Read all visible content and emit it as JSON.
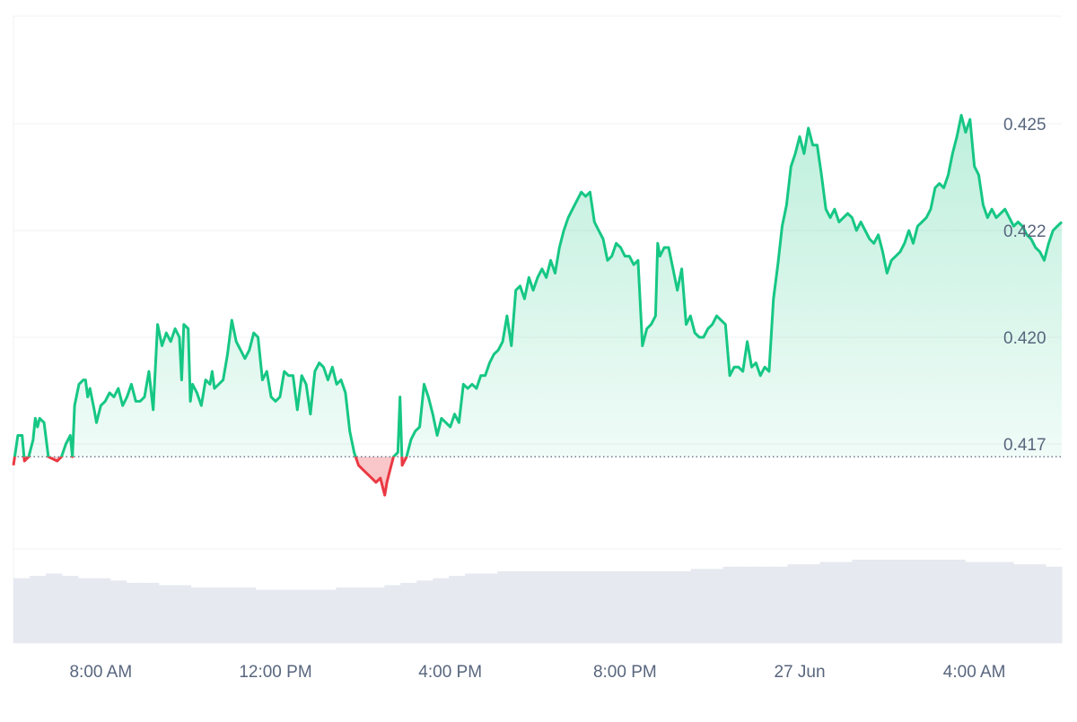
{
  "chart_data": {
    "type": "area",
    "title": "",
    "xlabel": "",
    "ylabel": "",
    "baseline": 0.4172,
    "ylim": [
      0.4145,
      0.4275
    ],
    "yticks": [
      {
        "label": "0.425",
        "value": 0.425
      },
      {
        "label": "0.422",
        "value": 0.4225
      },
      {
        "label": "0.420",
        "value": 0.42
      },
      {
        "label": "0.417",
        "value": 0.4175
      }
    ],
    "xticks": [
      {
        "label": "8:00 AM",
        "hour": 2
      },
      {
        "label": "12:00 PM",
        "hour": 6
      },
      {
        "label": "4:00 PM",
        "hour": 10
      },
      {
        "label": "8:00 PM",
        "hour": 14
      },
      {
        "label": "27 Jun",
        "hour": 18
      },
      {
        "label": "4:00 AM",
        "hour": 22
      }
    ],
    "x_range_hours": [
      0,
      24
    ],
    "colors": {
      "up": "#16c784",
      "down": "#ea3943",
      "grid": "#eff2f5",
      "axis_text": "#58667e",
      "volume": "#e6e9ef"
    },
    "series": [
      {
        "values": [
          [
            0.0,
            0.417
          ],
          [
            0.1,
            0.4177
          ],
          [
            0.2,
            0.4177
          ],
          [
            0.25,
            0.4171
          ],
          [
            0.35,
            0.4172
          ],
          [
            0.45,
            0.4176
          ],
          [
            0.5,
            0.4181
          ],
          [
            0.55,
            0.4179
          ],
          [
            0.6,
            0.4181
          ],
          [
            0.7,
            0.418
          ],
          [
            0.8,
            0.4172
          ],
          [
            1.0,
            0.4171
          ],
          [
            1.1,
            0.4172
          ],
          [
            1.2,
            0.4175
          ],
          [
            1.3,
            0.4177
          ],
          [
            1.35,
            0.4172
          ],
          [
            1.4,
            0.4184
          ],
          [
            1.5,
            0.4189
          ],
          [
            1.6,
            0.419
          ],
          [
            1.65,
            0.419
          ],
          [
            1.7,
            0.4186
          ],
          [
            1.75,
            0.4188
          ],
          [
            1.85,
            0.4183
          ],
          [
            1.9,
            0.418
          ],
          [
            2.0,
            0.4184
          ],
          [
            2.1,
            0.4185
          ],
          [
            2.2,
            0.4187
          ],
          [
            2.3,
            0.4186
          ],
          [
            2.4,
            0.4188
          ],
          [
            2.5,
            0.4184
          ],
          [
            2.6,
            0.4186
          ],
          [
            2.7,
            0.4189
          ],
          [
            2.8,
            0.4185
          ],
          [
            2.9,
            0.4185
          ],
          [
            3.0,
            0.4186
          ],
          [
            3.1,
            0.4192
          ],
          [
            3.2,
            0.4183
          ],
          [
            3.3,
            0.4203
          ],
          [
            3.4,
            0.4198
          ],
          [
            3.5,
            0.4201
          ],
          [
            3.6,
            0.4199
          ],
          [
            3.7,
            0.4202
          ],
          [
            3.8,
            0.42
          ],
          [
            3.85,
            0.419
          ],
          [
            3.9,
            0.4203
          ],
          [
            4.0,
            0.4202
          ],
          [
            4.05,
            0.4185
          ],
          [
            4.1,
            0.4189
          ],
          [
            4.2,
            0.4187
          ],
          [
            4.3,
            0.4184
          ],
          [
            4.4,
            0.419
          ],
          [
            4.5,
            0.4189
          ],
          [
            4.55,
            0.4192
          ],
          [
            4.6,
            0.4188
          ],
          [
            4.7,
            0.4189
          ],
          [
            4.8,
            0.419
          ],
          [
            4.9,
            0.4196
          ],
          [
            5.0,
            0.4204
          ],
          [
            5.1,
            0.4199
          ],
          [
            5.2,
            0.4197
          ],
          [
            5.3,
            0.4195
          ],
          [
            5.4,
            0.4197
          ],
          [
            5.5,
            0.4201
          ],
          [
            5.6,
            0.42
          ],
          [
            5.7,
            0.419
          ],
          [
            5.8,
            0.4192
          ],
          [
            5.9,
            0.4186
          ],
          [
            6.0,
            0.4185
          ],
          [
            6.1,
            0.4186
          ],
          [
            6.2,
            0.4192
          ],
          [
            6.3,
            0.4191
          ],
          [
            6.4,
            0.4191
          ],
          [
            6.5,
            0.4183
          ],
          [
            6.6,
            0.4191
          ],
          [
            6.7,
            0.4189
          ],
          [
            6.8,
            0.4182
          ],
          [
            6.9,
            0.4192
          ],
          [
            7.0,
            0.4194
          ],
          [
            7.1,
            0.4193
          ],
          [
            7.2,
            0.419
          ],
          [
            7.3,
            0.4193
          ],
          [
            7.4,
            0.4189
          ],
          [
            7.5,
            0.419
          ],
          [
            7.6,
            0.4187
          ],
          [
            7.7,
            0.4178
          ],
          [
            7.8,
            0.4173
          ],
          [
            7.9,
            0.417
          ],
          [
            8.0,
            0.4169
          ],
          [
            8.1,
            0.4168
          ],
          [
            8.2,
            0.4167
          ],
          [
            8.3,
            0.4166
          ],
          [
            8.4,
            0.4167
          ],
          [
            8.5,
            0.4163
          ],
          [
            8.55,
            0.4166
          ],
          [
            8.6,
            0.4168
          ],
          [
            8.7,
            0.4172
          ],
          [
            8.8,
            0.4173
          ],
          [
            8.85,
            0.4186
          ],
          [
            8.9,
            0.417
          ],
          [
            9.0,
            0.4172
          ],
          [
            9.1,
            0.4176
          ],
          [
            9.2,
            0.4178
          ],
          [
            9.3,
            0.4179
          ],
          [
            9.4,
            0.4189
          ],
          [
            9.5,
            0.4186
          ],
          [
            9.6,
            0.4182
          ],
          [
            9.7,
            0.4177
          ],
          [
            9.8,
            0.4181
          ],
          [
            9.9,
            0.418
          ],
          [
            10.0,
            0.4179
          ],
          [
            10.1,
            0.4182
          ],
          [
            10.2,
            0.418
          ],
          [
            10.3,
            0.4189
          ],
          [
            10.4,
            0.4188
          ],
          [
            10.5,
            0.4189
          ],
          [
            10.6,
            0.4188
          ],
          [
            10.7,
            0.4191
          ],
          [
            10.8,
            0.4191
          ],
          [
            10.9,
            0.4194
          ],
          [
            11.0,
            0.4196
          ],
          [
            11.1,
            0.4197
          ],
          [
            11.2,
            0.4199
          ],
          [
            11.3,
            0.4205
          ],
          [
            11.4,
            0.4198
          ],
          [
            11.5,
            0.4211
          ],
          [
            11.6,
            0.4212
          ],
          [
            11.7,
            0.4209
          ],
          [
            11.8,
            0.4214
          ],
          [
            11.9,
            0.4211
          ],
          [
            12.0,
            0.4214
          ],
          [
            12.1,
            0.4216
          ],
          [
            12.2,
            0.4214
          ],
          [
            12.3,
            0.4218
          ],
          [
            12.4,
            0.4215
          ],
          [
            12.5,
            0.4221
          ],
          [
            12.6,
            0.4225
          ],
          [
            12.7,
            0.4228
          ],
          [
            12.8,
            0.423
          ],
          [
            12.9,
            0.4232
          ],
          [
            13.0,
            0.4234
          ],
          [
            13.1,
            0.4233
          ],
          [
            13.2,
            0.4234
          ],
          [
            13.3,
            0.4227
          ],
          [
            13.4,
            0.4225
          ],
          [
            13.5,
            0.4223
          ],
          [
            13.6,
            0.4218
          ],
          [
            13.7,
            0.4219
          ],
          [
            13.8,
            0.4222
          ],
          [
            13.9,
            0.4221
          ],
          [
            14.0,
            0.4219
          ],
          [
            14.1,
            0.4219
          ],
          [
            14.2,
            0.4217
          ],
          [
            14.3,
            0.4218
          ],
          [
            14.4,
            0.4198
          ],
          [
            14.5,
            0.4202
          ],
          [
            14.6,
            0.4203
          ],
          [
            14.7,
            0.4205
          ],
          [
            14.75,
            0.4222
          ],
          [
            14.8,
            0.4219
          ],
          [
            14.9,
            0.4221
          ],
          [
            15.0,
            0.4221
          ],
          [
            15.1,
            0.4216
          ],
          [
            15.2,
            0.4211
          ],
          [
            15.3,
            0.4216
          ],
          [
            15.4,
            0.4203
          ],
          [
            15.5,
            0.4205
          ],
          [
            15.6,
            0.4201
          ],
          [
            15.7,
            0.42
          ],
          [
            15.8,
            0.42
          ],
          [
            15.9,
            0.4202
          ],
          [
            16.0,
            0.4203
          ],
          [
            16.1,
            0.4205
          ],
          [
            16.2,
            0.4204
          ],
          [
            16.3,
            0.4203
          ],
          [
            16.4,
            0.4191
          ],
          [
            16.5,
            0.4193
          ],
          [
            16.6,
            0.4193
          ],
          [
            16.7,
            0.4192
          ],
          [
            16.8,
            0.4199
          ],
          [
            16.9,
            0.4193
          ],
          [
            17.0,
            0.4194
          ],
          [
            17.1,
            0.4191
          ],
          [
            17.2,
            0.4193
          ],
          [
            17.3,
            0.4192
          ],
          [
            17.4,
            0.4209
          ],
          [
            17.5,
            0.4217
          ],
          [
            17.6,
            0.4226
          ],
          [
            17.7,
            0.4231
          ],
          [
            17.8,
            0.424
          ],
          [
            17.9,
            0.4243
          ],
          [
            18.0,
            0.4247
          ],
          [
            18.1,
            0.4243
          ],
          [
            18.2,
            0.4249
          ],
          [
            18.3,
            0.4245
          ],
          [
            18.4,
            0.4245
          ],
          [
            18.5,
            0.4238
          ],
          [
            18.6,
            0.423
          ],
          [
            18.7,
            0.4228
          ],
          [
            18.8,
            0.423
          ],
          [
            18.9,
            0.4227
          ],
          [
            19.0,
            0.4228
          ],
          [
            19.1,
            0.4229
          ],
          [
            19.2,
            0.4228
          ],
          [
            19.3,
            0.4225
          ],
          [
            19.4,
            0.4227
          ],
          [
            19.5,
            0.4225
          ],
          [
            19.6,
            0.4223
          ],
          [
            19.7,
            0.4222
          ],
          [
            19.8,
            0.4224
          ],
          [
            19.9,
            0.422
          ],
          [
            20.0,
            0.4215
          ],
          [
            20.1,
            0.4218
          ],
          [
            20.2,
            0.4219
          ],
          [
            20.3,
            0.422
          ],
          [
            20.4,
            0.4222
          ],
          [
            20.5,
            0.4225
          ],
          [
            20.6,
            0.4222
          ],
          [
            20.7,
            0.4226
          ],
          [
            20.8,
            0.4227
          ],
          [
            20.9,
            0.4228
          ],
          [
            21.0,
            0.423
          ],
          [
            21.1,
            0.4235
          ],
          [
            21.2,
            0.4236
          ],
          [
            21.3,
            0.4235
          ],
          [
            21.4,
            0.4238
          ],
          [
            21.5,
            0.4243
          ],
          [
            21.6,
            0.4247
          ],
          [
            21.7,
            0.4252
          ],
          [
            21.8,
            0.4248
          ],
          [
            21.9,
            0.4251
          ],
          [
            22.0,
            0.424
          ],
          [
            22.1,
            0.4238
          ],
          [
            22.2,
            0.4231
          ],
          [
            22.3,
            0.4228
          ],
          [
            22.4,
            0.423
          ],
          [
            22.5,
            0.4228
          ],
          [
            22.6,
            0.4229
          ],
          [
            22.7,
            0.423
          ],
          [
            22.8,
            0.4228
          ],
          [
            22.9,
            0.4226
          ],
          [
            23.0,
            0.4227
          ],
          [
            23.1,
            0.4226
          ],
          [
            23.2,
            0.4224
          ],
          [
            23.3,
            0.4223
          ],
          [
            23.4,
            0.4221
          ],
          [
            23.5,
            0.422
          ],
          [
            23.6,
            0.4218
          ],
          [
            23.7,
            0.4222
          ],
          [
            23.8,
            0.4225
          ],
          [
            23.9,
            0.4226
          ],
          [
            24.0,
            0.4227
          ]
        ]
      }
    ],
    "volume": [
      28,
      29,
      30,
      29,
      28,
      28,
      27,
      26,
      26,
      25,
      25,
      24,
      24,
      24,
      24,
      23,
      23,
      23,
      23,
      23,
      24,
      24,
      24,
      25,
      26,
      27,
      28,
      29,
      30,
      30,
      31,
      31,
      31,
      31,
      31,
      31,
      31,
      31,
      31,
      31,
      31,
      31,
      32,
      32,
      33,
      33,
      33,
      33,
      34,
      34,
      35,
      35,
      36,
      36,
      36,
      36,
      36,
      36,
      36,
      35,
      35,
      35,
      34,
      34,
      33
    ]
  }
}
